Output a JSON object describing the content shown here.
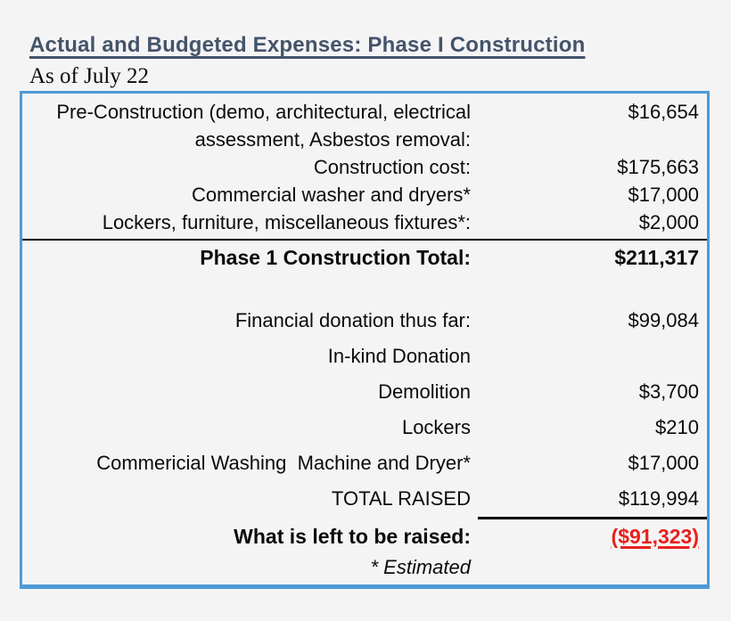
{
  "header": {
    "title": "Actual and Budgeted Expenses: Phase I Construction",
    "as_of": "As of July 22"
  },
  "colors": {
    "title": "#44546a",
    "table_border": "#4f9bd5",
    "negative": "#e8211d",
    "background": "#f5f4f5",
    "rule": "#000000"
  },
  "budget": {
    "rows": [
      {
        "label": "Pre-Construction (demo, architectural, electrical assessment, Asbestos removal:",
        "value": "$16,654"
      },
      {
        "label": "Construction cost:",
        "value": "$175,663"
      },
      {
        "label": "Commercial washer and dryers*",
        "value": "$17,000"
      },
      {
        "label": "Lockers, furniture, miscellaneous fixtures*:",
        "value": "$2,000"
      }
    ],
    "total": {
      "label": "Phase 1 Construction Total:",
      "value": "$211,317"
    }
  },
  "funding": {
    "rows": [
      {
        "label": "Financial donation thus far:",
        "value": "$99,084"
      },
      {
        "label": "In-kind Donation",
        "value": ""
      },
      {
        "label": "Demolition",
        "value": "$3,700"
      },
      {
        "label": "Lockers",
        "value": "$210"
      },
      {
        "label": "Commericial Washing  Machine and Dryer*",
        "value": "$17,000"
      },
      {
        "label": "TOTAL RAISED",
        "value": "$119,994"
      }
    ],
    "remaining": {
      "label": "What is left to be raised:",
      "value": "($91,323)"
    },
    "footnote": "* Estimated"
  }
}
